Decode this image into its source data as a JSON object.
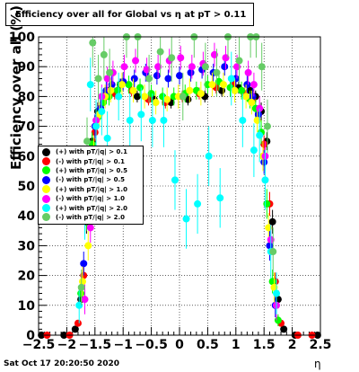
{
  "title": "Efficiency over all for Global vs   η at pT > 0.11",
  "datestamp": "Sat Oct 17 20:20:50 2020",
  "chart_data": {
    "type": "scatter",
    "xlabel": "η",
    "ylabel": "Efficiency over all (%)",
    "xlim": [
      -2.5,
      2.5
    ],
    "ylim": [
      0,
      100
    ],
    "xticks": [
      -2.5,
      -2,
      -1.5,
      -1,
      -0.5,
      0,
      0.5,
      1,
      1.5,
      2,
      2.5
    ],
    "xtick_labels": [
      "−2.5",
      "−2",
      "−1.5",
      "−1",
      "−0.5",
      "0",
      "0.5",
      "1",
      "1.5",
      "2",
      "2.5"
    ],
    "yticks": [
      0,
      10,
      20,
      30,
      40,
      50,
      60,
      70,
      80,
      90,
      100
    ],
    "ytick_labels": [
      "0",
      "10",
      "20",
      "30",
      "40",
      "50",
      "60",
      "70",
      "80",
      "90",
      "100"
    ],
    "grid": true,
    "legend_position": "left",
    "series": [
      {
        "name": "(+) with pT/|q| > 0.1",
        "color": "#000000",
        "x": [
          -2.45,
          -2.05,
          -1.85,
          -1.75,
          -1.65,
          -1.55,
          -1.45,
          -1.35,
          -1.25,
          -1.05,
          -0.75,
          -0.45,
          -0.15,
          0.15,
          0.45,
          0.75,
          1.05,
          1.25,
          1.35,
          1.45,
          1.55,
          1.65,
          1.75,
          1.85,
          2.05,
          2.45
        ],
        "y": [
          0,
          0,
          2,
          12,
          38,
          65,
          75,
          80,
          82,
          84,
          80,
          79,
          78,
          79,
          80,
          82,
          83,
          82,
          80,
          75,
          65,
          38,
          12,
          2,
          0,
          0
        ],
        "err": [
          0,
          0,
          1,
          3,
          4,
          3,
          3,
          2,
          2,
          2,
          2,
          2,
          2,
          2,
          2,
          2,
          2,
          2,
          2,
          3,
          3,
          4,
          3,
          1,
          0,
          0
        ]
      },
      {
        "name": "(-) with pT/|q| > 0.1",
        "color": "#ff0000",
        "x": [
          -2.35,
          -1.95,
          -1.8,
          -1.7,
          -1.6,
          -1.5,
          -1.4,
          -1.3,
          -1.15,
          -0.85,
          -0.55,
          -0.25,
          0.05,
          0.35,
          0.65,
          0.95,
          1.15,
          1.3,
          1.4,
          1.5,
          1.6,
          1.7,
          1.8,
          2.1,
          2.35
        ],
        "y": [
          0,
          0,
          4,
          20,
          45,
          68,
          76,
          80,
          81,
          82,
          79,
          78,
          80,
          81,
          83,
          84,
          81,
          79,
          74,
          64,
          44,
          18,
          4,
          0,
          0
        ],
        "err": [
          0,
          0,
          1,
          3,
          4,
          3,
          3,
          2,
          2,
          2,
          2,
          2,
          2,
          2,
          2,
          2,
          2,
          2,
          3,
          3,
          4,
          3,
          1,
          0,
          0
        ]
      },
      {
        "name": "(+) with pT/|q| > 0.5",
        "color": "#00ff00",
        "x": [
          -1.75,
          -1.65,
          -1.55,
          -1.45,
          -1.35,
          -1.25,
          -1.1,
          -0.9,
          -0.7,
          -0.5,
          -0.3,
          -0.1,
          0.1,
          0.3,
          0.5,
          0.7,
          0.9,
          1.1,
          1.25,
          1.35,
          1.45,
          1.55,
          1.65,
          1.75
        ],
        "y": [
          14,
          40,
          64,
          73,
          78,
          80,
          82,
          84,
          83,
          81,
          80,
          80,
          81,
          82,
          84,
          85,
          83,
          82,
          79,
          76,
          68,
          44,
          18,
          5
        ],
        "err": [
          4,
          5,
          4,
          3,
          3,
          3,
          3,
          3,
          3,
          3,
          3,
          3,
          3,
          3,
          3,
          3,
          3,
          3,
          3,
          3,
          4,
          5,
          4,
          2
        ]
      },
      {
        "name": "(-) with pT/|q| > 0.5",
        "color": "#0000ff",
        "x": [
          -1.7,
          -1.6,
          -1.5,
          -1.4,
          -1.3,
          -1.2,
          -1.0,
          -0.8,
          -0.6,
          -0.4,
          -0.2,
          0.0,
          0.2,
          0.4,
          0.6,
          0.8,
          1.0,
          1.2,
          1.3,
          1.4,
          1.5,
          1.6,
          1.7
        ],
        "y": [
          24,
          50,
          70,
          76,
          82,
          84,
          85,
          86,
          88,
          87,
          86,
          87,
          88,
          89,
          88,
          90,
          86,
          84,
          80,
          74,
          58,
          30,
          10
        ],
        "err": [
          4,
          5,
          4,
          3,
          3,
          3,
          3,
          3,
          3,
          3,
          3,
          3,
          3,
          3,
          3,
          3,
          3,
          3,
          3,
          3,
          4,
          5,
          4
        ]
      },
      {
        "name": "(+) with pT/|q| > 1.0",
        "color": "#ffff00",
        "x": [
          -1.72,
          -1.62,
          -1.52,
          -1.42,
          -1.32,
          -1.22,
          -1.02,
          -0.82,
          -0.62,
          -0.42,
          -0.22,
          -0.02,
          0.18,
          0.38,
          0.58,
          0.78,
          0.98,
          1.18,
          1.28,
          1.38,
          1.48,
          1.58,
          1.68
        ],
        "y": [
          18,
          30,
          62,
          74,
          80,
          82,
          84,
          82,
          80,
          78,
          79,
          80,
          82,
          81,
          84,
          84,
          82,
          80,
          78,
          72,
          60,
          36,
          16
        ],
        "err": [
          5,
          5,
          5,
          4,
          4,
          4,
          4,
          4,
          4,
          4,
          4,
          4,
          4,
          4,
          4,
          4,
          4,
          4,
          4,
          4,
          5,
          5,
          5
        ]
      },
      {
        "name": "(-) with pT/|q| > 1.0",
        "color": "#ff00ff",
        "x": [
          -1.68,
          -1.58,
          -1.48,
          -1.38,
          -1.28,
          -1.18,
          -0.98,
          -0.78,
          -0.58,
          -0.38,
          -0.18,
          0.02,
          0.22,
          0.42,
          0.62,
          0.82,
          1.02,
          1.22,
          1.32,
          1.42,
          1.52,
          1.62,
          1.72
        ],
        "y": [
          12,
          36,
          72,
          80,
          86,
          88,
          90,
          92,
          89,
          90,
          92,
          93,
          90,
          91,
          94,
          93,
          90,
          88,
          84,
          76,
          60,
          32,
          10
        ],
        "err": [
          5,
          5,
          5,
          4,
          4,
          4,
          4,
          4,
          4,
          4,
          4,
          4,
          4,
          4,
          4,
          4,
          4,
          4,
          4,
          4,
          5,
          5,
          5
        ]
      },
      {
        "name": "(+) with pT/|q| > 2.0",
        "color": "#00ffff",
        "x": [
          -1.78,
          -1.68,
          -1.58,
          -1.48,
          -1.38,
          -1.28,
          -1.08,
          -0.88,
          -0.68,
          -0.48,
          -0.28,
          -0.08,
          0.12,
          0.32,
          0.52,
          0.72,
          0.92,
          1.12,
          1.32,
          1.42,
          1.52,
          1.62,
          1.72
        ],
        "y": [
          10,
          40,
          84,
          70,
          75,
          66,
          80,
          72,
          74,
          72,
          72,
          52,
          39,
          44,
          60,
          46,
          86,
          72,
          62,
          67,
          52,
          28,
          14
        ],
        "err": [
          6,
          8,
          9,
          9,
          8,
          9,
          8,
          9,
          9,
          9,
          9,
          10,
          10,
          10,
          10,
          10,
          9,
          9,
          9,
          9,
          10,
          9,
          7
        ]
      },
      {
        "name": "(-) with pT/|q| > 2.0",
        "color": "#66cc66",
        "x": [
          -1.74,
          -1.64,
          -1.54,
          -1.44,
          -1.34,
          -1.24,
          -0.94,
          -0.74,
          -0.54,
          -0.34,
          -0.14,
          0.06,
          0.26,
          0.46,
          0.66,
          0.86,
          1.06,
          1.26,
          1.36,
          1.46,
          1.56,
          1.66
        ],
        "y": [
          16,
          65,
          98,
          86,
          94,
          88,
          100,
          100,
          86,
          95,
          93,
          80,
          100,
          90,
          88,
          100,
          92,
          100,
          100,
          90,
          70,
          28
        ],
        "err": [
          6,
          8,
          8,
          8,
          8,
          8,
          7,
          7,
          8,
          8,
          8,
          8,
          7,
          8,
          8,
          7,
          8,
          7,
          7,
          8,
          9,
          8
        ]
      }
    ]
  }
}
